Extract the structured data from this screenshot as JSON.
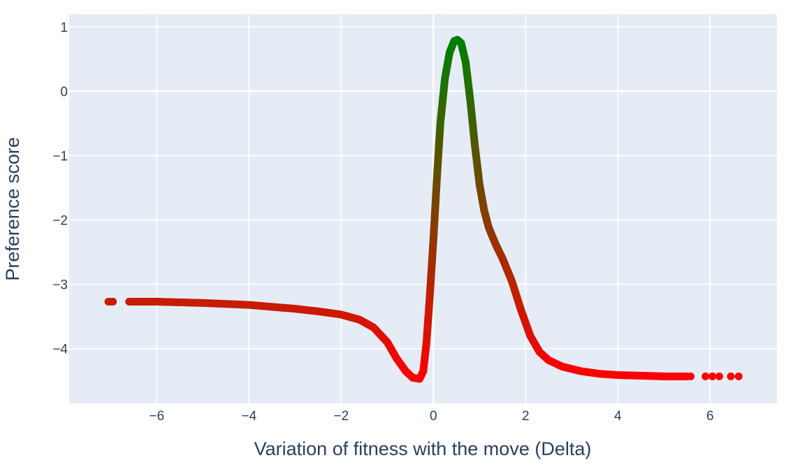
{
  "chart_data": {
    "type": "scatter",
    "title": "",
    "xlabel": "Variation of fitness with the move (Delta)",
    "ylabel": "Preference score",
    "xlim": [
      -7.9,
      7.45
    ],
    "ylim": [
      -4.85,
      1.2
    ],
    "grid": true,
    "legend": "none",
    "x_ticks": [
      -6,
      -4,
      -2,
      0,
      2,
      4,
      6
    ],
    "x_tick_labels": [
      "−6",
      "−4",
      "−2",
      "0",
      "2",
      "4",
      "6"
    ],
    "y_ticks": [
      1,
      0,
      -1,
      -2,
      -3,
      -4
    ],
    "y_tick_labels": [
      "1",
      "0",
      "−1",
      "−2",
      "−3",
      "−4"
    ],
    "colors": {
      "plot_bg": "#e5ecf6",
      "grid": "#ffffff",
      "text": "#2a3f5f",
      "low_score": "#ff0000",
      "high_score": "#008000"
    },
    "color_scale": "red (low score) to green (high score)",
    "curve_points": [
      {
        "x": -6.6,
        "y": -3.27
      },
      {
        "x": -6.0,
        "y": -3.27
      },
      {
        "x": -5.0,
        "y": -3.29
      },
      {
        "x": -4.0,
        "y": -3.32
      },
      {
        "x": -3.0,
        "y": -3.38
      },
      {
        "x": -2.5,
        "y": -3.42
      },
      {
        "x": -2.0,
        "y": -3.47
      },
      {
        "x": -1.6,
        "y": -3.55
      },
      {
        "x": -1.3,
        "y": -3.67
      },
      {
        "x": -1.0,
        "y": -3.9
      },
      {
        "x": -0.8,
        "y": -4.15
      },
      {
        "x": -0.6,
        "y": -4.35
      },
      {
        "x": -0.45,
        "y": -4.45
      },
      {
        "x": -0.3,
        "y": -4.47
      },
      {
        "x": -0.22,
        "y": -4.35
      },
      {
        "x": -0.15,
        "y": -3.9
      },
      {
        "x": -0.08,
        "y": -3.2
      },
      {
        "x": 0.0,
        "y": -2.3
      },
      {
        "x": 0.08,
        "y": -1.3
      },
      {
        "x": 0.15,
        "y": -0.5
      },
      {
        "x": 0.25,
        "y": 0.2
      },
      {
        "x": 0.35,
        "y": 0.6
      },
      {
        "x": 0.45,
        "y": 0.78
      },
      {
        "x": 0.52,
        "y": 0.8
      },
      {
        "x": 0.6,
        "y": 0.75
      },
      {
        "x": 0.7,
        "y": 0.45
      },
      {
        "x": 0.8,
        "y": -0.15
      },
      {
        "x": 0.9,
        "y": -0.85
      },
      {
        "x": 1.0,
        "y": -1.45
      },
      {
        "x": 1.1,
        "y": -1.85
      },
      {
        "x": 1.2,
        "y": -2.12
      },
      {
        "x": 1.35,
        "y": -2.38
      },
      {
        "x": 1.5,
        "y": -2.6
      },
      {
        "x": 1.7,
        "y": -2.95
      },
      {
        "x": 1.9,
        "y": -3.4
      },
      {
        "x": 2.1,
        "y": -3.8
      },
      {
        "x": 2.3,
        "y": -4.05
      },
      {
        "x": 2.5,
        "y": -4.18
      },
      {
        "x": 2.8,
        "y": -4.28
      },
      {
        "x": 3.2,
        "y": -4.35
      },
      {
        "x": 3.6,
        "y": -4.39
      },
      {
        "x": 4.0,
        "y": -4.41
      },
      {
        "x": 4.5,
        "y": -4.42
      },
      {
        "x": 5.0,
        "y": -4.43
      },
      {
        "x": 5.5,
        "y": -4.43
      }
    ],
    "isolated_points": [
      {
        "x": -7.05,
        "y": -3.27
      },
      {
        "x": -7.0,
        "y": -3.27
      },
      {
        "x": -6.95,
        "y": -3.27
      },
      {
        "x": 5.58,
        "y": -4.43
      },
      {
        "x": 5.9,
        "y": -4.43
      },
      {
        "x": 6.05,
        "y": -4.43
      },
      {
        "x": 6.2,
        "y": -4.43
      },
      {
        "x": 6.45,
        "y": -4.43
      },
      {
        "x": 6.62,
        "y": -4.43
      }
    ]
  }
}
